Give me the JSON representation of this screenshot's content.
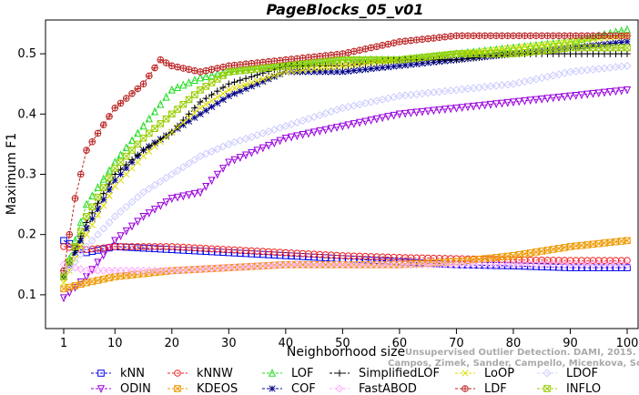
{
  "chart_data": {
    "type": "line",
    "title": "PageBlocks_05_v01",
    "xlabel": "Neighborhood size",
    "ylabel": "Maximum F1",
    "xlim": [
      1,
      100
    ],
    "ylim": [
      0.05,
      0.55
    ],
    "x_ticks": [
      1,
      10,
      20,
      30,
      40,
      50,
      60,
      70,
      80,
      90,
      100
    ],
    "y_ticks": [
      0.1,
      0.2,
      0.3,
      0.4,
      0.5
    ],
    "grid": false,
    "legend_position": "bottom",
    "credit_line1": "Unsupervised Outlier Detection. DAMI, 2015.",
    "credit_line2": "Campos, Zimek, Sander, Campello, Micenkova, Schubert, Assent, Houle",
    "series": [
      {
        "name": "kNN",
        "color": "#0000ee",
        "marker": "square",
        "x": [
          1,
          5,
          10,
          20,
          30,
          40,
          50,
          60,
          70,
          80,
          90,
          100
        ],
        "y": [
          0.19,
          0.17,
          0.18,
          0.175,
          0.17,
          0.165,
          0.16,
          0.155,
          0.15,
          0.148,
          0.145,
          0.145
        ]
      },
      {
        "name": "ODIN",
        "color": "#9900dd",
        "marker": "triangle-down",
        "x": [
          1,
          5,
          10,
          15,
          20,
          25,
          30,
          40,
          50,
          60,
          70,
          80,
          90,
          100
        ],
        "y": [
          0.095,
          0.13,
          0.19,
          0.23,
          0.26,
          0.27,
          0.32,
          0.36,
          0.38,
          0.4,
          0.41,
          0.42,
          0.43,
          0.44
        ]
      },
      {
        "name": "kNNW",
        "color": "#ee2222",
        "marker": "circle",
        "x": [
          1,
          5,
          10,
          20,
          30,
          40,
          50,
          60,
          70,
          80,
          90,
          100
        ],
        "y": [
          0.18,
          0.175,
          0.18,
          0.18,
          0.175,
          0.17,
          0.165,
          0.162,
          0.16,
          0.158,
          0.157,
          0.157
        ]
      },
      {
        "name": "KDEOS",
        "color": "#ee9900",
        "marker": "square-x",
        "x": [
          1,
          5,
          10,
          20,
          30,
          40,
          50,
          60,
          70,
          80,
          90,
          100
        ],
        "y": [
          0.11,
          0.12,
          0.13,
          0.14,
          0.145,
          0.15,
          0.15,
          0.15,
          0.155,
          0.165,
          0.18,
          0.19
        ]
      },
      {
        "name": "LOF",
        "color": "#22dd22",
        "marker": "triangle-up",
        "x": [
          1,
          5,
          10,
          15,
          20,
          25,
          30,
          40,
          50,
          60,
          70,
          80,
          90,
          100
        ],
        "y": [
          0.13,
          0.25,
          0.32,
          0.38,
          0.44,
          0.46,
          0.47,
          0.48,
          0.49,
          0.49,
          0.5,
          0.51,
          0.52,
          0.54
        ]
      },
      {
        "name": "COF",
        "color": "#000088",
        "marker": "star",
        "x": [
          1,
          5,
          10,
          15,
          20,
          25,
          30,
          40,
          50,
          60,
          70,
          80,
          90,
          100
        ],
        "y": [
          0.13,
          0.21,
          0.29,
          0.34,
          0.37,
          0.4,
          0.43,
          0.47,
          0.47,
          0.48,
          0.49,
          0.5,
          0.51,
          0.52
        ]
      },
      {
        "name": "SimplifiedLOF",
        "color": "#000000",
        "marker": "plus",
        "x": [
          1,
          5,
          10,
          15,
          20,
          25,
          30,
          40,
          50,
          60,
          70,
          80,
          90,
          100
        ],
        "y": [
          0.13,
          0.22,
          0.3,
          0.34,
          0.37,
          0.42,
          0.45,
          0.48,
          0.48,
          0.49,
          0.49,
          0.5,
          0.5,
          0.5
        ]
      },
      {
        "name": "FastABOD",
        "color": "#ffaaff",
        "marker": "diamond",
        "x": [
          1,
          5,
          10,
          20,
          30,
          40,
          50,
          60,
          70,
          80,
          90,
          100
        ],
        "y": [
          0.15,
          0.14,
          0.14,
          0.14,
          0.145,
          0.15,
          0.15,
          0.15,
          0.15,
          0.15,
          0.15,
          0.15
        ]
      },
      {
        "name": "LoOP",
        "color": "#dddd00",
        "marker": "x",
        "x": [
          1,
          5,
          10,
          15,
          20,
          25,
          30,
          40,
          50,
          60,
          70,
          80,
          90,
          100
        ],
        "y": [
          0.12,
          0.2,
          0.28,
          0.33,
          0.37,
          0.41,
          0.44,
          0.47,
          0.48,
          0.49,
          0.5,
          0.51,
          0.52,
          0.53
        ]
      },
      {
        "name": "LDF",
        "color": "#bb2222",
        "marker": "circle-plus",
        "x": [
          1,
          3,
          5,
          10,
          15,
          18,
          20,
          25,
          30,
          40,
          50,
          60,
          70,
          80,
          90,
          100
        ],
        "y": [
          0.14,
          0.26,
          0.34,
          0.41,
          0.45,
          0.49,
          0.48,
          0.47,
          0.48,
          0.49,
          0.5,
          0.52,
          0.53,
          0.53,
          0.53,
          0.53
        ]
      },
      {
        "name": "LDOF",
        "color": "#ccccff",
        "marker": "diamond",
        "x": [
          1,
          5,
          10,
          15,
          20,
          25,
          30,
          40,
          50,
          60,
          70,
          80,
          90,
          100
        ],
        "y": [
          0.13,
          0.18,
          0.23,
          0.27,
          0.3,
          0.33,
          0.35,
          0.38,
          0.41,
          0.43,
          0.44,
          0.45,
          0.47,
          0.48
        ]
      },
      {
        "name": "INFLO",
        "color": "#99cc00",
        "marker": "square-x",
        "x": [
          1,
          5,
          10,
          15,
          20,
          25,
          30,
          40,
          50,
          60,
          70,
          80,
          90,
          100
        ],
        "y": [
          0.13,
          0.23,
          0.31,
          0.36,
          0.4,
          0.44,
          0.47,
          0.48,
          0.49,
          0.49,
          0.5,
          0.5,
          0.51,
          0.51
        ]
      }
    ]
  }
}
